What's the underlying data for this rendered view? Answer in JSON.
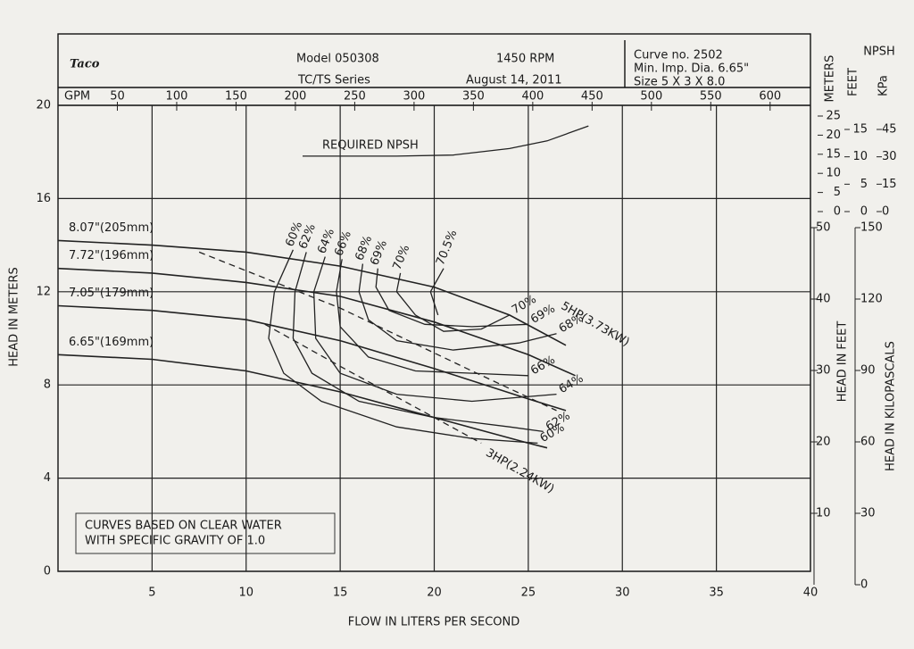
{
  "header": {
    "logo": "Taco",
    "model": "Model 050308",
    "series": "TC/TS Series",
    "rpm": "1450 RPM",
    "date": "August 14, 2011",
    "curve_no": "Curve no. 2502",
    "min_imp": "Min. Imp. Dia. 6.65\"",
    "size": "Size 5 X 3 X 8.0"
  },
  "note": [
    "CURVES BASED ON CLEAR WATER",
    "WITH SPECIFIC GRAVITY OF 1.0"
  ],
  "chart_data": {
    "type": "line",
    "x_label": "FLOW IN LITERS PER SECOND",
    "y_label": "HEAD IN METERS",
    "xlim": [
      0,
      40
    ],
    "xticks": [
      5,
      10,
      15,
      20,
      25,
      30,
      35,
      40
    ],
    "ylim": [
      0,
      20
    ],
    "yticks": [
      0,
      4,
      8,
      12,
      16,
      20
    ],
    "gpm_label": "GPM",
    "gpm_lim": [
      0,
      634
    ],
    "gpm_ticks": [
      50,
      100,
      150,
      200,
      250,
      300,
      350,
      400,
      450,
      500,
      550,
      600
    ],
    "feet_label": "HEAD IN FEET",
    "feet_lim": [
      0,
      50
    ],
    "feet_ticks": [
      10,
      20,
      30,
      40,
      50
    ],
    "kpa_label": "HEAD IN KILOPASCALS",
    "kpa_lim": [
      0,
      150
    ],
    "kpa_ticks": [
      0,
      30,
      60,
      90,
      120,
      150
    ],
    "npsh_label": "NPSH",
    "npsh_units": [
      "METERS",
      "FEET",
      "KPa"
    ],
    "npsh_lim": [
      0,
      25
    ],
    "npsh_ticks": [
      0,
      5,
      10,
      15,
      20,
      25
    ],
    "npsh_feet_lim": [
      0,
      15
    ],
    "npsh_feet_ticks": [
      0,
      5,
      10,
      15
    ],
    "npsh_kpa_lim": [
      0,
      45
    ],
    "npsh_kpa_ticks": [
      0,
      15,
      30,
      45
    ],
    "grid": true,
    "series": [
      {
        "name": "8.07\"(205mm)",
        "kind": "impeller",
        "color": "#222",
        "x": [
          0,
          5,
          10,
          15,
          20,
          24,
          27
        ],
        "values": [
          14.2,
          14.0,
          13.7,
          13.1,
          12.2,
          11.0,
          9.7
        ]
      },
      {
        "name": "7.72\"(196mm)",
        "kind": "impeller",
        "color": "#222",
        "x": [
          0,
          5,
          10,
          15,
          20,
          25,
          27.5
        ],
        "values": [
          13.0,
          12.8,
          12.4,
          11.8,
          10.7,
          9.3,
          8.4
        ]
      },
      {
        "name": "7.05\"(179mm)",
        "kind": "impeller",
        "color": "#222",
        "x": [
          0,
          5,
          10,
          15,
          20,
          25,
          27
        ],
        "values": [
          11.4,
          11.2,
          10.8,
          9.9,
          8.7,
          7.4,
          6.9
        ]
      },
      {
        "name": "6.65\"(169mm)",
        "kind": "impeller",
        "color": "#222",
        "x": [
          0,
          5,
          10,
          15,
          20,
          25,
          26
        ],
        "values": [
          9.3,
          9.1,
          8.6,
          7.7,
          6.6,
          5.5,
          5.3
        ]
      },
      {
        "name": "5HP(3.73KW)",
        "kind": "hp",
        "color": "#222",
        "x": [
          7.5,
          15,
          22,
          26.5
        ],
        "values": [
          13.7,
          11.3,
          8.6,
          6.9
        ]
      },
      {
        "name": "3HP(2.24KW)",
        "kind": "hp",
        "color": "#222",
        "x": [
          11,
          15,
          20,
          22.5
        ],
        "values": [
          10.6,
          8.8,
          6.6,
          5.5
        ]
      },
      {
        "name": "60%",
        "kind": "eff",
        "color": "#222",
        "x": [
          12.5,
          11.5,
          11.2,
          12,
          14,
          18,
          22,
          25.5
        ],
        "values": [
          13.8,
          12,
          10,
          8.5,
          7.3,
          6.2,
          5.7,
          5.5
        ]
      },
      {
        "name": "62%",
        "kind": "eff",
        "color": "#222",
        "x": [
          13.2,
          12.6,
          12.5,
          13.5,
          16,
          20,
          24,
          25.8
        ],
        "values": [
          13.7,
          12,
          10,
          8.5,
          7.3,
          6.6,
          6.2,
          6.0
        ]
      },
      {
        "name": "64%",
        "kind": "eff",
        "color": "#222",
        "x": [
          14.2,
          13.6,
          13.7,
          15,
          18,
          22,
          26.5
        ],
        "values": [
          13.5,
          12,
          10,
          8.5,
          7.6,
          7.3,
          7.6
        ]
      },
      {
        "name": "66%",
        "kind": "eff",
        "color": "#222",
        "x": [
          15.1,
          14.8,
          15,
          16.5,
          19,
          22,
          25
        ],
        "values": [
          13.4,
          12,
          10.5,
          9.2,
          8.6,
          8.5,
          8.4
        ]
      },
      {
        "name": "68%",
        "kind": "eff",
        "color": "#222",
        "x": [
          16.2,
          16,
          16.5,
          18,
          21,
          24.5,
          26.5
        ],
        "values": [
          13.2,
          12,
          10.8,
          9.9,
          9.5,
          9.8,
          10.2
        ]
      },
      {
        "name": "69%",
        "kind": "eff",
        "color": "#222",
        "x": [
          17,
          16.9,
          17.6,
          19.5,
          22,
          25
        ],
        "values": [
          13,
          12.2,
          11.2,
          10.6,
          10.5,
          10.6
        ]
      },
      {
        "name": "70%",
        "kind": "eff",
        "color": "#222",
        "x": [
          18.2,
          18,
          19,
          20.5,
          22.5,
          24
        ],
        "values": [
          12.8,
          12,
          11,
          10.3,
          10.4,
          11
        ]
      },
      {
        "name": "70.5%",
        "kind": "eff",
        "color": "#222",
        "x": [
          20.5,
          19.8,
          20.2
        ],
        "values": [
          13,
          12,
          11
        ]
      },
      {
        "name": "REQUIRED NPSH",
        "kind": "npsh",
        "axis": "npsh",
        "color": "#222",
        "x": [
          13,
          18,
          21,
          24,
          26,
          28.2
        ],
        "values": [
          14.5,
          14.5,
          14.8,
          16.5,
          18.5,
          22.4
        ]
      }
    ]
  }
}
